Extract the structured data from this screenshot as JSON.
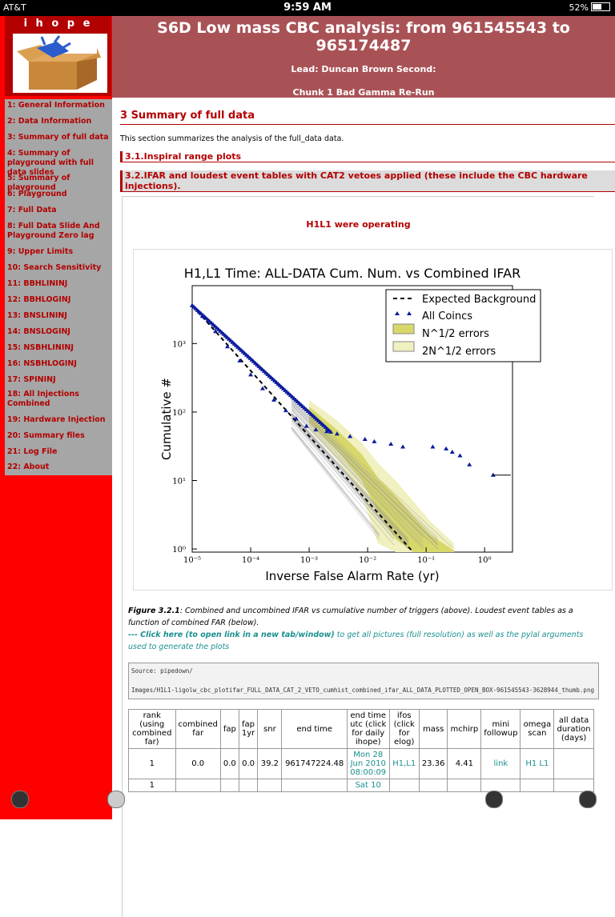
{
  "status": {
    "carrier": "AT&T",
    "time": "9:59 AM",
    "battery": "52%"
  },
  "sidebar": {
    "brand": "i h o p e",
    "items": [
      "1: General Information",
      "2: Data Information",
      "3: Summary of full data",
      "4: Summary of playground with full data slides",
      "5: Summary of playground",
      "6: Playground",
      "7: Full Data",
      "8: Full Data Slide And Playground Zero lag",
      "9: Upper Limits",
      "10: Search Sensitivity",
      "11: BBHLININJ",
      "12: BBHLOGINJ",
      "13: BNSLININJ",
      "14: BNSLOGINJ",
      "15: NSBHLININJ",
      "16: NSBHLOGINJ",
      "17: SPININJ",
      "18: All Injections Combined",
      "19: Hardware Injection",
      "20: Summary files",
      "21: Log File",
      "22: About"
    ]
  },
  "banner": {
    "title": "S6D Low mass CBC analysis: from 961545543 to 965174487",
    "lead": "Lead: Duncan Brown   Second:",
    "chunk": "Chunk 1 Bad Gamma Re-Run"
  },
  "main": {
    "section": "3 Summary of full data",
    "intro": "This section summarizes the analysis of the full_data data.",
    "sub1": "3.1.Inspiral range plots",
    "sub2": "3.2.IFAR and loudest event tables with CAT2 vetoes applied (these include the CBC hardware injections).",
    "operating": "H1L1 were operating",
    "caption_label": "Figure 3.2.1",
    "caption_text": ": Combined and uncombined IFAR vs cumulative number of triggers (above). Loudest event tables as a function of combined FAR (below).",
    "caption_link": "--- Click here (to open link in a new tab/window)",
    "caption_tail": " to get all pictures (full resolution) as well as the pylal arguments used to generate the plots",
    "source": "Source: pipedown/\n\nImages/H1L1-ligolw_cbc_plotifar_FULL_DATA_CAT_2_VETO_cumhist_combined_ifar_ALL_DATA_PLOTTED_OPEN_BOX-961545543-3628944_thumb.png"
  },
  "table": {
    "headers": [
      "rank (using combined far)",
      "combined far",
      "fap",
      "fap 1yr",
      "snr",
      "end time",
      "end time utc (click for daily ihope)",
      "ifos (click for elog)",
      "mass",
      "mchirp",
      "mini followup",
      "omega scan",
      "all data duration (days)"
    ],
    "rows": [
      [
        "1",
        "0.0",
        "0.0",
        "0.0",
        "39.2",
        "961747224.48",
        "Mon 28 Jun 2010 08:00:09",
        "H1,L1",
        "23.36",
        "4.41",
        "link",
        "H1 L1",
        ""
      ],
      [
        "1",
        "",
        "",
        "",
        "",
        "",
        "Sat 10",
        "",
        "",
        "",
        "",
        "",
        ""
      ]
    ]
  },
  "chart_data": {
    "type": "scatter",
    "title": "H1,L1 Time: ALL-DATA Cum. Num. vs Combined IFAR",
    "xlabel": "Inverse False Alarm Rate (yr)",
    "ylabel": "Cumulative #",
    "xscale": "log",
    "yscale": "log",
    "xlim": [
      1e-05,
      3
    ],
    "ylim": [
      0.9,
      7000
    ],
    "xticks": [
      "10⁻⁵",
      "10⁻⁴",
      "10⁻³",
      "10⁻²",
      "10⁻¹",
      "10⁰"
    ],
    "yticks": [
      "10⁰",
      "10¹",
      "10²",
      "10³"
    ],
    "legend": [
      "Expected Background",
      "All Coincs",
      "N^1/2 errors",
      "2N^1/2 errors"
    ],
    "legend_position": "top-right",
    "series": [
      {
        "name": "All Coincs",
        "x": [
          1e-05,
          1.5e-05,
          2.5e-05,
          4e-05,
          6.5e-05,
          0.0001,
          0.00016,
          0.00025,
          0.0004,
          0.0006,
          0.0009,
          0.0013,
          0.002,
          0.003,
          0.005,
          0.009,
          0.013,
          0.025,
          0.04,
          0.13,
          0.22,
          0.28,
          0.38,
          0.55,
          1.4
        ],
        "y": [
          3600,
          2500,
          1500,
          900,
          560,
          350,
          220,
          150,
          105,
          80,
          62,
          55,
          52,
          48,
          44,
          40,
          37,
          34,
          31,
          31,
          29,
          26,
          23,
          17,
          12
        ]
      },
      {
        "name": "Expected Background",
        "x": [
          1e-05,
          0.06
        ],
        "y": [
          3600,
          0.6
        ]
      }
    ],
    "colors": {
      "points": "#0a1a9e",
      "n_band": "#d8d86a",
      "2n_band": "#f0f0c0",
      "background_trials": "#999999"
    }
  }
}
